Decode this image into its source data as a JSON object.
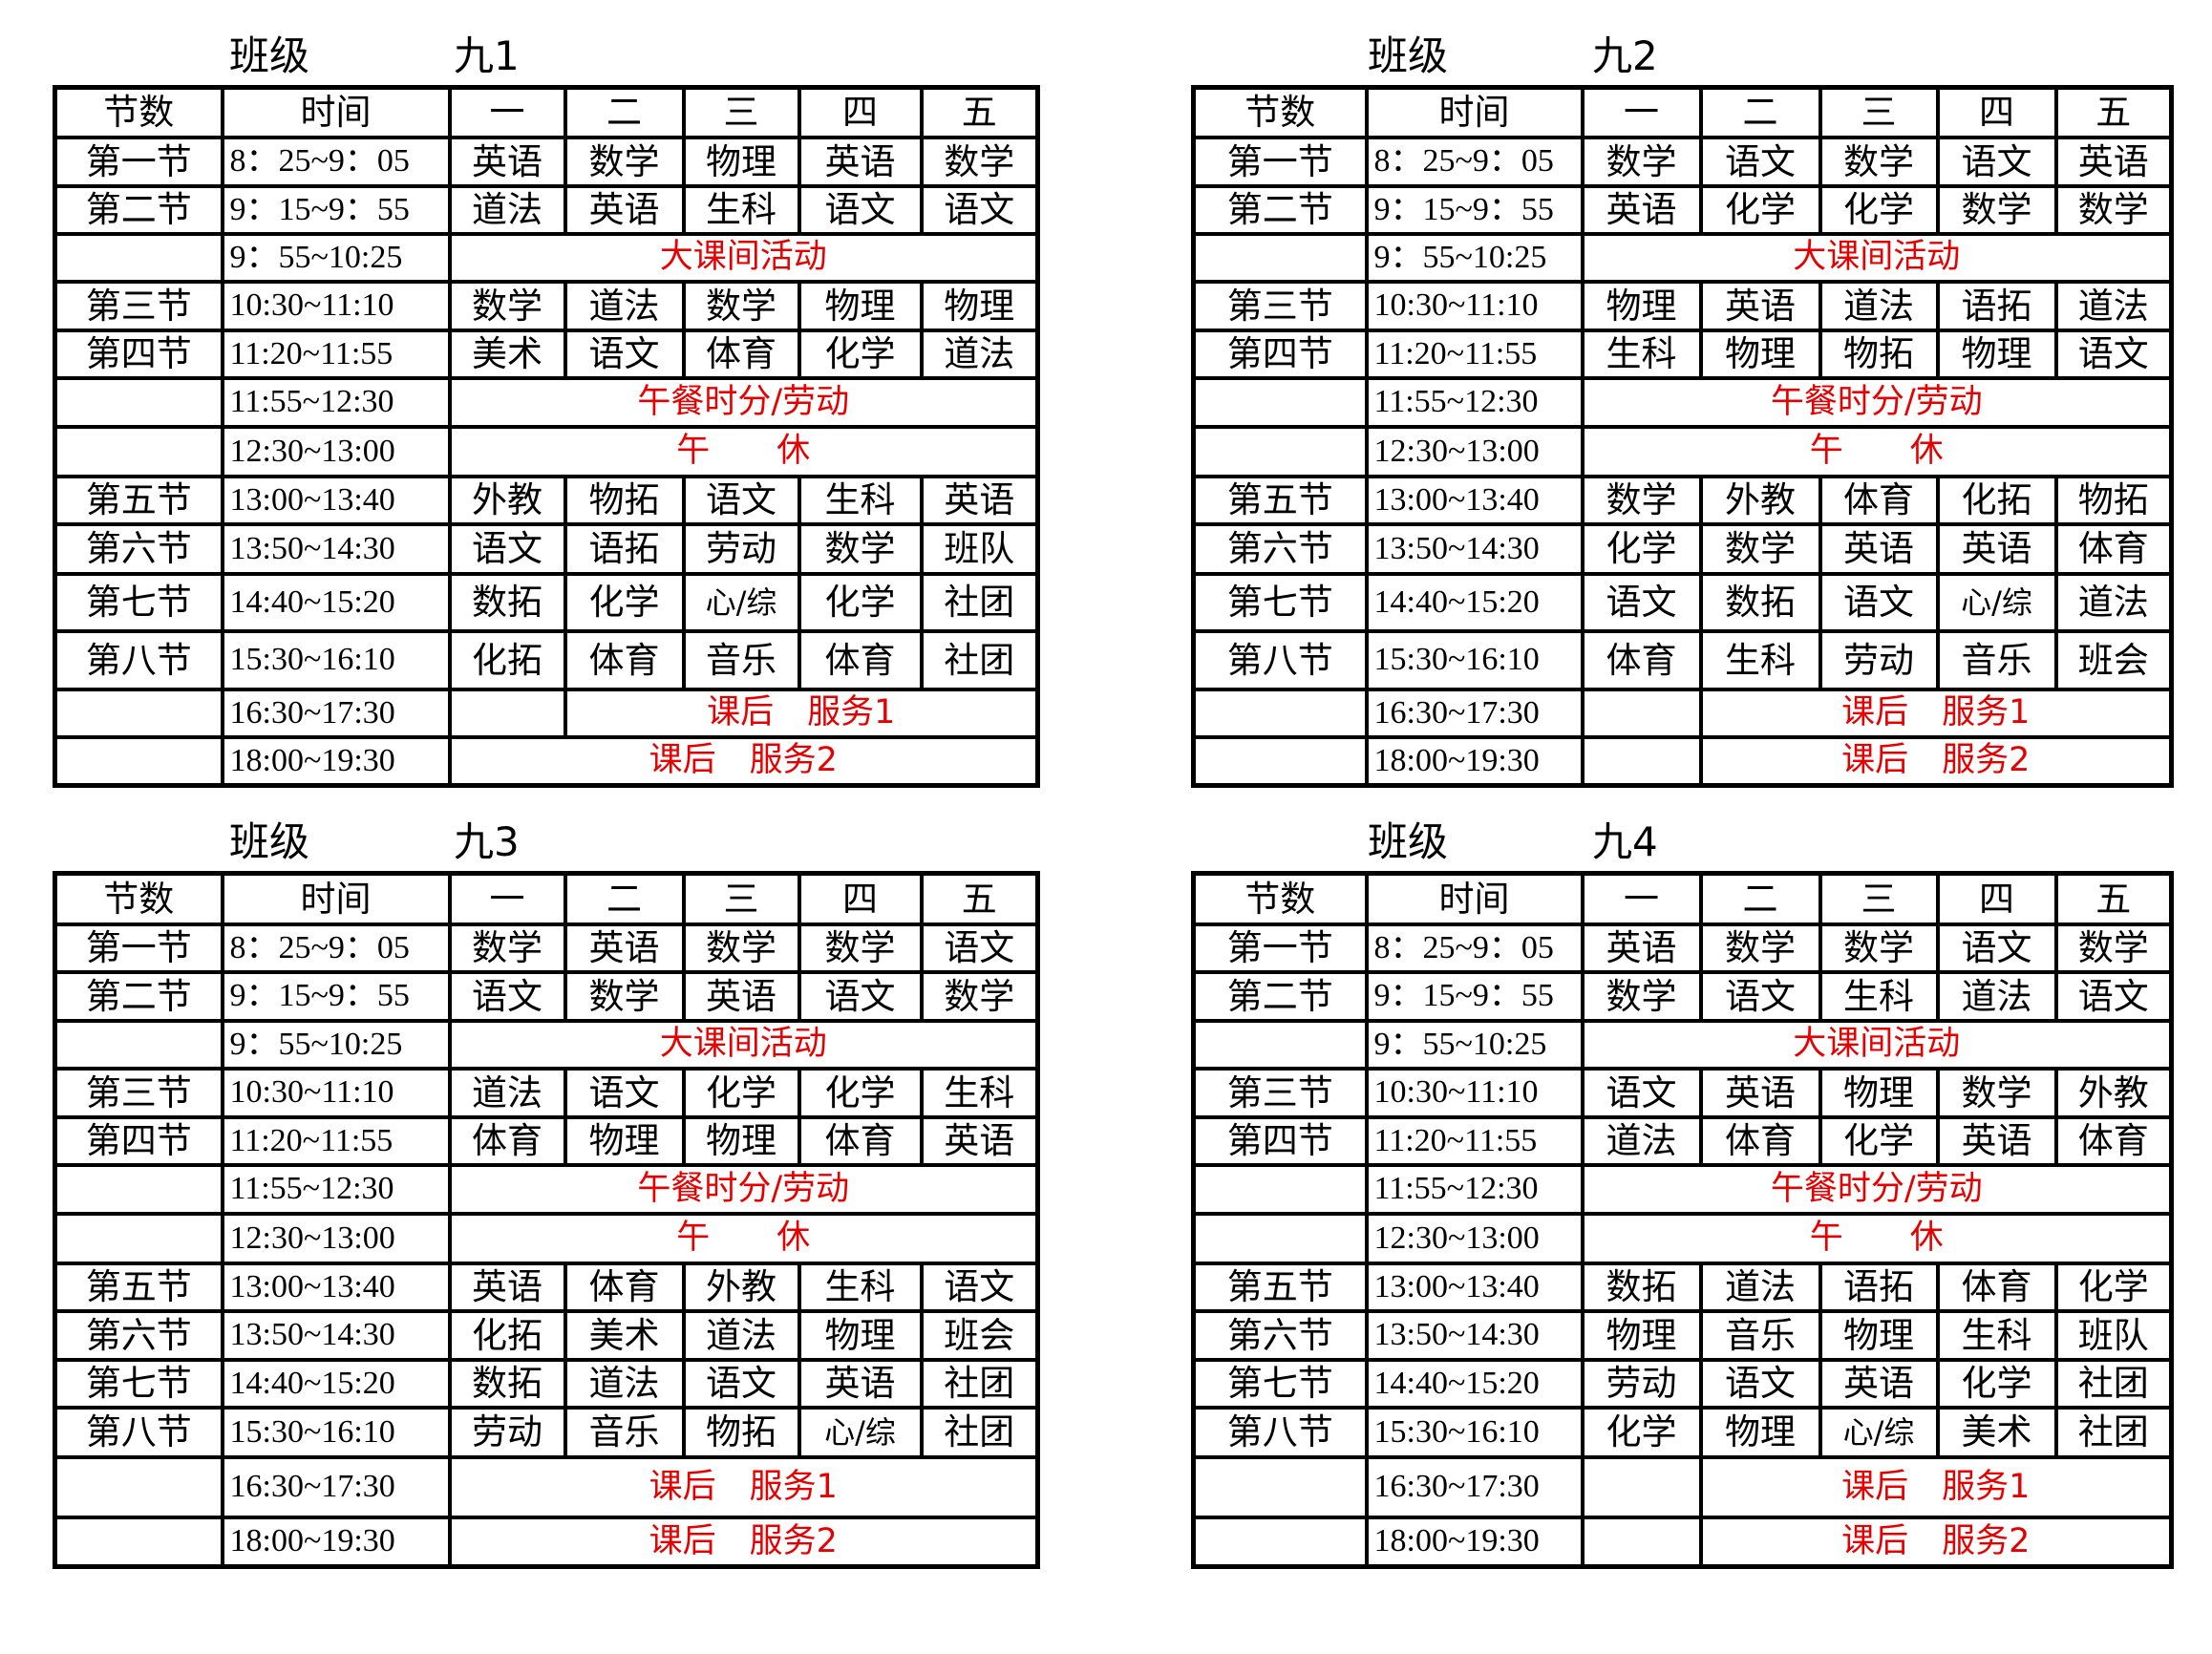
{
  "colors": {
    "text": "#000000",
    "activity": "#e60000",
    "grid": "#000000"
  },
  "class_label": "班级",
  "header": [
    "节数",
    "时间",
    "一",
    "二",
    "三",
    "四",
    "五"
  ],
  "classes": [
    {
      "name": "九1",
      "rows": [
        {
          "period": "第一节",
          "time": "8：25~9：05",
          "cells": [
            "英语",
            "数学",
            "物理",
            "英语",
            "数学"
          ]
        },
        {
          "period": "第二节",
          "time": "9：15~9：55",
          "cells": [
            "道法",
            "英语",
            "生科",
            "语文",
            "语文"
          ]
        },
        {
          "period": "",
          "time": "9：55~10:25",
          "activity": "大课间活动",
          "activity_from": "一"
        },
        {
          "period": "第三节",
          "time": "10:30~11:10",
          "cells": [
            "数学",
            "道法",
            "数学",
            "物理",
            "物理"
          ]
        },
        {
          "period": "第四节",
          "time": "11:20~11:55",
          "cells": [
            "美术",
            "语文",
            "体育",
            "化学",
            "道法"
          ]
        },
        {
          "period": "",
          "time": "11:55~12:30",
          "activity": "午餐时分/劳动",
          "activity_from": "一"
        },
        {
          "period": "",
          "time": "12:30~13:00",
          "activity": "午　　休",
          "activity_from": "一"
        },
        {
          "period": "第五节",
          "time": "13:00~13:40",
          "cells": [
            "外教",
            "物拓",
            "语文",
            "生科",
            "英语"
          ]
        },
        {
          "period": "第六节",
          "time": "13:50~14:30",
          "cells": [
            "语文",
            "语拓",
            "劳动",
            "数学",
            "班队"
          ]
        },
        {
          "period": "第七节",
          "time": "14:40~15:20",
          "cells": [
            "数拓",
            "化学",
            "心/综",
            "化学",
            "社团"
          ]
        },
        {
          "period": "第八节",
          "time": "15:30~16:10",
          "cells": [
            "化拓",
            "体育",
            "音乐",
            "体育",
            "社团"
          ]
        },
        {
          "period": "",
          "time": "16:30~17:30",
          "activity": "课后　服务1",
          "activity_from": "二"
        },
        {
          "period": "",
          "time": "18:00~19:30",
          "activity": "课后　服务2",
          "activity_from": "一"
        }
      ]
    },
    {
      "name": "九2",
      "rows": [
        {
          "period": "第一节",
          "time": "8：25~9：05",
          "cells": [
            "数学",
            "语文",
            "数学",
            "语文",
            "英语"
          ]
        },
        {
          "period": "第二节",
          "time": "9：15~9：55",
          "cells": [
            "英语",
            "化学",
            "化学",
            "数学",
            "数学"
          ]
        },
        {
          "period": "",
          "time": "9：55~10:25",
          "activity": "大课间活动",
          "activity_from": "一"
        },
        {
          "period": "第三节",
          "time": "10:30~11:10",
          "cells": [
            "物理",
            "英语",
            "道法",
            "语拓",
            "道法"
          ]
        },
        {
          "period": "第四节",
          "time": "11:20~11:55",
          "cells": [
            "生科",
            "物理",
            "物拓",
            "物理",
            "语文"
          ]
        },
        {
          "period": "",
          "time": "11:55~12:30",
          "activity": "午餐时分/劳动",
          "activity_from": "一"
        },
        {
          "period": "",
          "time": "12:30~13:00",
          "activity": "午　　休",
          "activity_from": "一"
        },
        {
          "period": "第五节",
          "time": "13:00~13:40",
          "cells": [
            "数学",
            "外教",
            "体育",
            "化拓",
            "物拓"
          ]
        },
        {
          "period": "第六节",
          "time": "13:50~14:30",
          "cells": [
            "化学",
            "数学",
            "英语",
            "英语",
            "体育"
          ]
        },
        {
          "period": "第七节",
          "time": "14:40~15:20",
          "cells": [
            "语文",
            "数拓",
            "语文",
            "心/综",
            "道法"
          ]
        },
        {
          "period": "第八节",
          "time": "15:30~16:10",
          "cells": [
            "体育",
            "生科",
            "劳动",
            "音乐",
            "班会"
          ]
        },
        {
          "period": "",
          "time": "16:30~17:30",
          "activity": "课后　服务1",
          "activity_from": "二"
        },
        {
          "period": "",
          "time": "18:00~19:30",
          "activity": "课后　服务2",
          "activity_from": "二"
        }
      ]
    },
    {
      "name": "九3",
      "rows": [
        {
          "period": "第一节",
          "time": "8：25~9：05",
          "cells": [
            "数学",
            "英语",
            "数学",
            "数学",
            "语文"
          ]
        },
        {
          "period": "第二节",
          "time": "9：15~9：55",
          "cells": [
            "语文",
            "数学",
            "英语",
            "语文",
            "数学"
          ]
        },
        {
          "period": "",
          "time": "9：55~10:25",
          "activity": "大课间活动",
          "activity_from": "一"
        },
        {
          "period": "第三节",
          "time": "10:30~11:10",
          "cells": [
            "道法",
            "语文",
            "化学",
            "化学",
            "生科"
          ]
        },
        {
          "period": "第四节",
          "time": "11:20~11:55",
          "cells": [
            "体育",
            "物理",
            "物理",
            "体育",
            "英语"
          ]
        },
        {
          "period": "",
          "time": "11:55~12:30",
          "activity": "午餐时分/劳动",
          "activity_from": "一"
        },
        {
          "period": "",
          "time": "12:30~13:00",
          "activity": "午　　休",
          "activity_from": "一"
        },
        {
          "period": "第五节",
          "time": "13:00~13:40",
          "cells": [
            "英语",
            "体育",
            "外教",
            "生科",
            "语文"
          ]
        },
        {
          "period": "第六节",
          "time": "13:50~14:30",
          "cells": [
            "化拓",
            "美术",
            "道法",
            "物理",
            "班会"
          ]
        },
        {
          "period": "第七节",
          "time": "14:40~15:20",
          "cells": [
            "数拓",
            "道法",
            "语文",
            "英语",
            "社团"
          ]
        },
        {
          "period": "第八节",
          "time": "15:30~16:10",
          "cells": [
            "劳动",
            "音乐",
            "物拓",
            "心/综",
            "社团"
          ]
        },
        {
          "period": "",
          "time": "16:30~17:30",
          "activity": "课后　服务1",
          "activity_from": "一"
        },
        {
          "period": "",
          "time": "18:00~19:30",
          "activity": "课后　服务2",
          "activity_from": "一"
        }
      ]
    },
    {
      "name": "九4",
      "rows": [
        {
          "period": "第一节",
          "time": "8：25~9：05",
          "cells": [
            "英语",
            "数学",
            "数学",
            "语文",
            "数学"
          ]
        },
        {
          "period": "第二节",
          "time": "9：15~9：55",
          "cells": [
            "数学",
            "语文",
            "生科",
            "道法",
            "语文"
          ]
        },
        {
          "period": "",
          "time": "9：55~10:25",
          "activity": "大课间活动",
          "activity_from": "一"
        },
        {
          "period": "第三节",
          "time": "10:30~11:10",
          "cells": [
            "语文",
            "英语",
            "物理",
            "数学",
            "外教"
          ]
        },
        {
          "period": "第四节",
          "time": "11:20~11:55",
          "cells": [
            "道法",
            "体育",
            "化学",
            "英语",
            "体育"
          ]
        },
        {
          "period": "",
          "time": "11:55~12:30",
          "activity": "午餐时分/劳动",
          "activity_from": "一"
        },
        {
          "period": "",
          "time": "12:30~13:00",
          "activity": "午　　休",
          "activity_from": "一"
        },
        {
          "period": "第五节",
          "time": "13:00~13:40",
          "cells": [
            "数拓",
            "道法",
            "语拓",
            "体育",
            "化学"
          ]
        },
        {
          "period": "第六节",
          "time": "13:50~14:30",
          "cells": [
            "物理",
            "音乐",
            "物理",
            "生科",
            "班队"
          ]
        },
        {
          "period": "第七节",
          "time": "14:40~15:20",
          "cells": [
            "劳动",
            "语文",
            "英语",
            "化学",
            "社团"
          ]
        },
        {
          "period": "第八节",
          "time": "15:30~16:10",
          "cells": [
            "化学",
            "物理",
            "心/综",
            "美术",
            "社团"
          ]
        },
        {
          "period": "",
          "time": "16:30~17:30",
          "activity": "课后　服务1",
          "activity_from": "二"
        },
        {
          "period": "",
          "time": "18:00~19:30",
          "activity": "课后　服务2",
          "activity_from": "二"
        }
      ]
    }
  ]
}
